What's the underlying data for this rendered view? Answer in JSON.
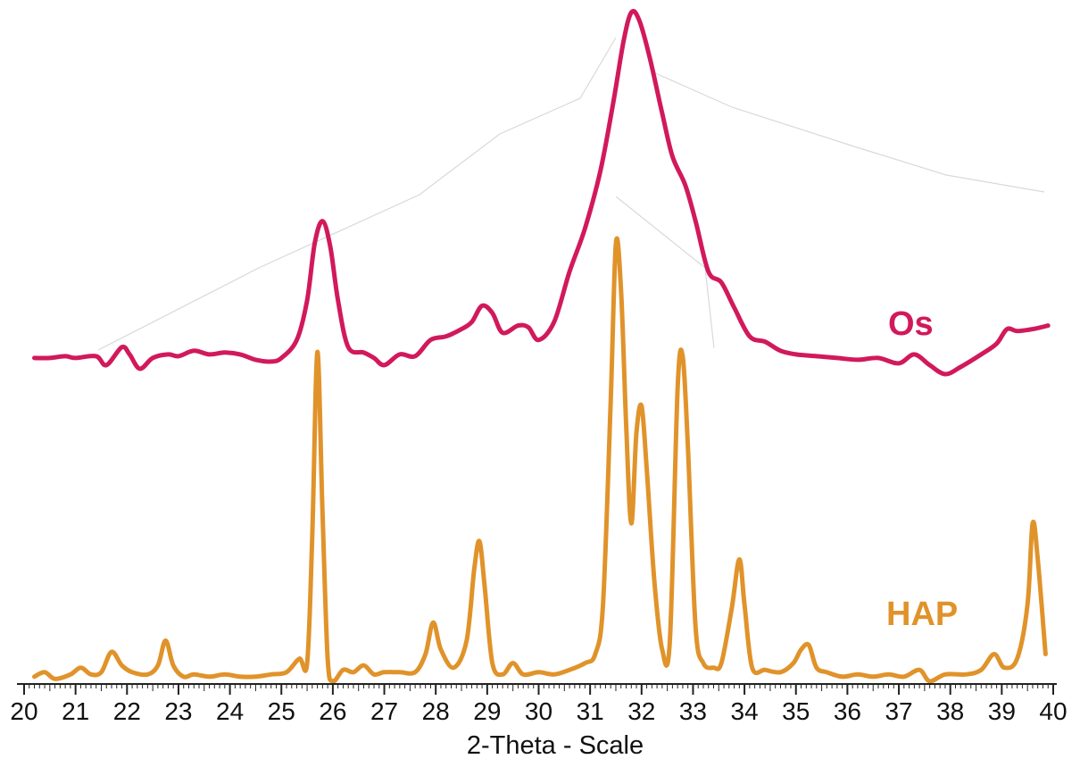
{
  "chart_data": {
    "type": "line",
    "xlabel": "2-Theta - Scale",
    "ylabel": "",
    "xlim": [
      20,
      40
    ],
    "x_ticks": [
      "20",
      "21",
      "22",
      "23",
      "24",
      "25",
      "26",
      "27",
      "28",
      "29",
      "30",
      "31",
      "32",
      "33",
      "34",
      "35",
      "36",
      "37",
      "38",
      "39",
      "40"
    ],
    "grid": false,
    "legend": "inline labels at right",
    "series": [
      {
        "name": "Os",
        "color": "#d1195b",
        "points": [
          [
            20.2,
            0.04
          ],
          [
            20.5,
            0.04
          ],
          [
            20.8,
            0.045
          ],
          [
            21.0,
            0.04
          ],
          [
            21.4,
            0.045
          ],
          [
            21.6,
            0.02
          ],
          [
            21.9,
            0.07
          ],
          [
            22.05,
            0.05
          ],
          [
            22.25,
            0.01
          ],
          [
            22.5,
            0.04
          ],
          [
            22.8,
            0.05
          ],
          [
            23.0,
            0.045
          ],
          [
            23.3,
            0.06
          ],
          [
            23.6,
            0.05
          ],
          [
            23.9,
            0.055
          ],
          [
            24.2,
            0.05
          ],
          [
            24.5,
            0.035
          ],
          [
            24.8,
            0.03
          ],
          [
            25.0,
            0.04
          ],
          [
            25.3,
            0.09
          ],
          [
            25.5,
            0.2
          ],
          [
            25.65,
            0.36
          ],
          [
            25.8,
            0.42
          ],
          [
            25.95,
            0.35
          ],
          [
            26.1,
            0.2
          ],
          [
            26.3,
            0.07
          ],
          [
            26.6,
            0.055
          ],
          [
            26.8,
            0.04
          ],
          [
            27.0,
            0.02
          ],
          [
            27.3,
            0.05
          ],
          [
            27.6,
            0.045
          ],
          [
            27.9,
            0.09
          ],
          [
            28.2,
            0.1
          ],
          [
            28.5,
            0.12
          ],
          [
            28.7,
            0.14
          ],
          [
            28.9,
            0.185
          ],
          [
            29.1,
            0.165
          ],
          [
            29.3,
            0.11
          ],
          [
            29.6,
            0.13
          ],
          [
            29.8,
            0.125
          ],
          [
            30.0,
            0.09
          ],
          [
            30.3,
            0.14
          ],
          [
            30.6,
            0.28
          ],
          [
            30.9,
            0.4
          ],
          [
            31.2,
            0.56
          ],
          [
            31.45,
            0.75
          ],
          [
            31.65,
            0.92
          ],
          [
            31.8,
            1.0
          ],
          [
            31.95,
            0.98
          ],
          [
            32.15,
            0.88
          ],
          [
            32.4,
            0.72
          ],
          [
            32.6,
            0.6
          ],
          [
            32.85,
            0.52
          ],
          [
            33.05,
            0.42
          ],
          [
            33.3,
            0.28
          ],
          [
            33.55,
            0.25
          ],
          [
            33.8,
            0.18
          ],
          [
            34.1,
            0.1
          ],
          [
            34.4,
            0.085
          ],
          [
            34.7,
            0.06
          ],
          [
            35.0,
            0.05
          ],
          [
            35.4,
            0.045
          ],
          [
            35.8,
            0.04
          ],
          [
            36.2,
            0.035
          ],
          [
            36.6,
            0.04
          ],
          [
            37.0,
            0.025
          ],
          [
            37.3,
            0.05
          ],
          [
            37.6,
            0.02
          ],
          [
            37.9,
            -0.005
          ],
          [
            38.2,
            0.015
          ],
          [
            38.6,
            0.05
          ],
          [
            38.9,
            0.08
          ],
          [
            39.1,
            0.12
          ],
          [
            39.3,
            0.115
          ],
          [
            39.6,
            0.12
          ],
          [
            39.9,
            0.13
          ]
        ]
      },
      {
        "name": "HAP",
        "color": "#e0932a",
        "points": [
          [
            20.2,
            0.04
          ],
          [
            20.4,
            0.05
          ],
          [
            20.6,
            0.035
          ],
          [
            20.9,
            0.045
          ],
          [
            21.1,
            0.06
          ],
          [
            21.3,
            0.045
          ],
          [
            21.5,
            0.05
          ],
          [
            21.7,
            0.095
          ],
          [
            21.9,
            0.065
          ],
          [
            22.1,
            0.05
          ],
          [
            22.4,
            0.045
          ],
          [
            22.6,
            0.065
          ],
          [
            22.75,
            0.12
          ],
          [
            22.9,
            0.065
          ],
          [
            23.1,
            0.04
          ],
          [
            23.3,
            0.045
          ],
          [
            23.6,
            0.04
          ],
          [
            23.9,
            0.045
          ],
          [
            24.2,
            0.04
          ],
          [
            24.5,
            0.04
          ],
          [
            24.8,
            0.045
          ],
          [
            25.1,
            0.05
          ],
          [
            25.35,
            0.08
          ],
          [
            25.5,
            0.07
          ],
          [
            25.6,
            0.35
          ],
          [
            25.7,
            0.76
          ],
          [
            25.8,
            0.4
          ],
          [
            25.9,
            0.08
          ],
          [
            26.0,
            0.03
          ],
          [
            26.2,
            0.055
          ],
          [
            26.4,
            0.05
          ],
          [
            26.6,
            0.065
          ],
          [
            26.8,
            0.045
          ],
          [
            27.0,
            0.05
          ],
          [
            27.3,
            0.05
          ],
          [
            27.6,
            0.05
          ],
          [
            27.8,
            0.09
          ],
          [
            27.95,
            0.16
          ],
          [
            28.1,
            0.1
          ],
          [
            28.35,
            0.06
          ],
          [
            28.6,
            0.12
          ],
          [
            28.75,
            0.28
          ],
          [
            28.85,
            0.34
          ],
          [
            28.95,
            0.24
          ],
          [
            29.1,
            0.07
          ],
          [
            29.3,
            0.045
          ],
          [
            29.5,
            0.07
          ],
          [
            29.7,
            0.045
          ],
          [
            30.0,
            0.05
          ],
          [
            30.3,
            0.045
          ],
          [
            30.6,
            0.055
          ],
          [
            30.9,
            0.07
          ],
          [
            31.1,
            0.09
          ],
          [
            31.25,
            0.2
          ],
          [
            31.4,
            0.65
          ],
          [
            31.5,
            1.0
          ],
          [
            31.6,
            0.9
          ],
          [
            31.7,
            0.6
          ],
          [
            31.8,
            0.38
          ],
          [
            31.9,
            0.58
          ],
          [
            32.0,
            0.64
          ],
          [
            32.1,
            0.5
          ],
          [
            32.25,
            0.25
          ],
          [
            32.4,
            0.1
          ],
          [
            32.55,
            0.12
          ],
          [
            32.7,
            0.68
          ],
          [
            32.8,
            0.75
          ],
          [
            32.9,
            0.55
          ],
          [
            33.05,
            0.15
          ],
          [
            33.2,
            0.07
          ],
          [
            33.4,
            0.06
          ],
          [
            33.55,
            0.07
          ],
          [
            33.75,
            0.19
          ],
          [
            33.9,
            0.3
          ],
          [
            34.0,
            0.2
          ],
          [
            34.15,
            0.06
          ],
          [
            34.4,
            0.055
          ],
          [
            34.7,
            0.05
          ],
          [
            34.95,
            0.07
          ],
          [
            35.1,
            0.1
          ],
          [
            35.25,
            0.11
          ],
          [
            35.4,
            0.06
          ],
          [
            35.6,
            0.05
          ],
          [
            35.9,
            0.04
          ],
          [
            36.2,
            0.045
          ],
          [
            36.5,
            0.04
          ],
          [
            36.8,
            0.045
          ],
          [
            37.1,
            0.04
          ],
          [
            37.4,
            0.055
          ],
          [
            37.6,
            0.03
          ],
          [
            37.9,
            0.045
          ],
          [
            38.3,
            0.045
          ],
          [
            38.6,
            0.055
          ],
          [
            38.85,
            0.09
          ],
          [
            39.05,
            0.06
          ],
          [
            39.3,
            0.08
          ],
          [
            39.5,
            0.2
          ],
          [
            39.6,
            0.38
          ],
          [
            39.7,
            0.3
          ],
          [
            39.85,
            0.09
          ]
        ]
      }
    ]
  }
}
